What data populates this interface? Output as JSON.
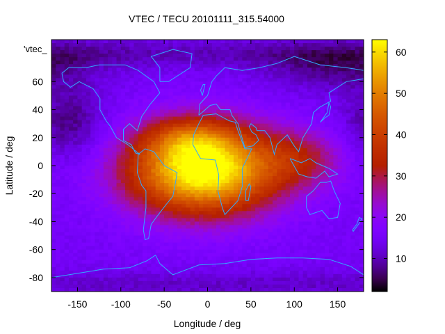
{
  "chart_data": {
    "type": "heatmap",
    "title": "VTEC / TECU 20101111_315.54000",
    "xlabel": "Longitude / deg",
    "ylabel": "Latitude / deg",
    "legend_key": "'vtec_",
    "xlim": [
      -180,
      180
    ],
    "ylim": [
      -90,
      90
    ],
    "xticks": [
      -150,
      -100,
      -50,
      0,
      50,
      100,
      150
    ],
    "yticks": [
      -80,
      -60,
      -40,
      -20,
      0,
      20,
      40,
      60
    ],
    "colorbar": {
      "range": [
        2,
        63
      ],
      "ticks": [
        10,
        20,
        30,
        40,
        50,
        60
      ]
    },
    "grid_resolution_deg": [
      5,
      2.5
    ],
    "background_level": 15,
    "features": [
      {
        "lon": -5,
        "lat": -3,
        "peak": 52,
        "sigma_lon": 60,
        "sigma_lat": 22
      },
      {
        "lon": -20,
        "lat": 20,
        "peak": 12,
        "sigma_lon": 35,
        "sigma_lat": 10
      },
      {
        "lon": 110,
        "lat": 5,
        "peak": 12,
        "sigma_lon": 35,
        "sigma_lat": 14
      },
      {
        "lon": -160,
        "lat": 30,
        "peak": -8,
        "sigma_lon": 30,
        "sigma_lat": 18
      },
      {
        "lon": 150,
        "lat": 70,
        "peak": -7,
        "sigma_lon": 60,
        "sigma_lat": 12
      }
    ],
    "overlay": "continent outlines (cyan)"
  },
  "colors": {
    "overlay": "#33aaff",
    "palette": "gnuplot-rgbformulae-7-5-15"
  }
}
